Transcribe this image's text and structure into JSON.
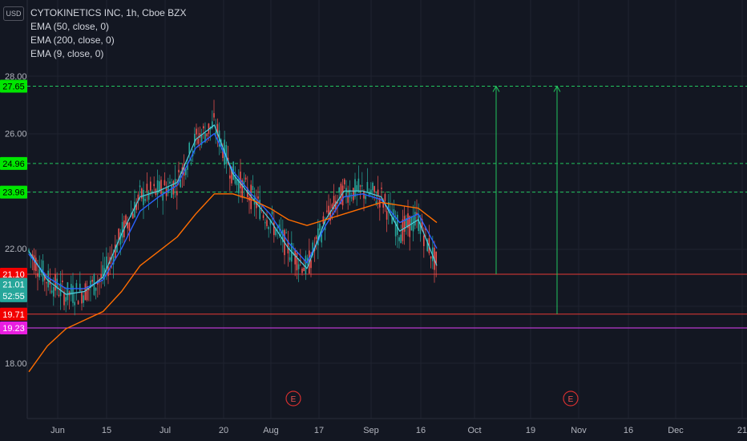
{
  "header": {
    "symbol_line": "CYTOKINETICS INC, 1h, Cboe BZX",
    "indicators": [
      "EMA (50, close, 0)",
      "EMA (200, close, 0)",
      "EMA (9, close, 0)"
    ],
    "currency_button": "USD"
  },
  "colors": {
    "background": "#131722",
    "grid": "#1f2330",
    "price_axis_text": "#b2b5be",
    "ema50": "#2962ff",
    "ema200": "#ff6d00",
    "ema9": "#4dd0e1",
    "green_level": "#22c55e",
    "red_level": "#e53935",
    "magenta_level": "#e040fb",
    "candle_up": "#26a69a",
    "candle_down": "#ef5350"
  },
  "chart_data": {
    "type": "line",
    "title": "CYTOKINETICS INC, 1h, Cboe BZX",
    "y_ticks": [
      "28.00",
      "26.00",
      "22.00",
      "18.00"
    ],
    "ylim": [
      17.0,
      29.5
    ],
    "x_ticks": [
      "Jun",
      "15",
      "Jul",
      "20",
      "Aug",
      "17",
      "Sep",
      "16",
      "Oct",
      "19",
      "Nov",
      "16",
      "Dec",
      "21"
    ],
    "price_badges": [
      {
        "label": "27.65",
        "value": 27.65,
        "color": "#00e600",
        "text_color": "#000000"
      },
      {
        "label": "24.96",
        "value": 24.96,
        "color": "#00e600",
        "text_color": "#000000"
      },
      {
        "label": "23.96",
        "value": 23.96,
        "color": "#00e600",
        "text_color": "#000000"
      },
      {
        "label": "21.10",
        "value": 21.1,
        "color": "#f20000",
        "text_color": "#ffffff"
      },
      {
        "label": "21.01",
        "value": 20.75,
        "color": "#26a69a",
        "text_color": "#ffffff"
      },
      {
        "label": "52:55",
        "value": 20.35,
        "color": "#26a69a",
        "text_color": "#ffffff"
      },
      {
        "label": "19.71",
        "value": 19.71,
        "color": "#f20000",
        "text_color": "#ffffff"
      },
      {
        "label": "19.23",
        "value": 19.23,
        "color": "#e91ee0",
        "text_color": "#ffffff"
      }
    ],
    "horizontal_levels": [
      {
        "value": 27.65,
        "style": "dashed",
        "color": "#22c55e"
      },
      {
        "value": 24.96,
        "style": "dashed",
        "color": "#22c55e"
      },
      {
        "value": 23.96,
        "style": "dashed",
        "color": "#22c55e"
      },
      {
        "value": 21.1,
        "style": "solid",
        "color": "#e53935"
      },
      {
        "value": 19.71,
        "style": "solid",
        "color": "#e53935"
      },
      {
        "value": 19.23,
        "style": "solid",
        "color": "#e040fb"
      }
    ],
    "arrows": [
      {
        "x_index": 24.4,
        "from": 21.1,
        "to": 27.65,
        "color": "#22c55e"
      },
      {
        "x_index": 27.8,
        "from": 19.71,
        "to": 27.65,
        "color": "#22c55e"
      }
    ],
    "earnings_markers": [
      {
        "x_index": 13.8,
        "label": "E"
      },
      {
        "x_index": 28.5,
        "label": "E"
      }
    ],
    "series": [
      {
        "name": "EMA (9, close, 0)",
        "x": [
          0,
          1,
          2,
          3,
          4,
          5,
          6,
          7,
          8,
          9,
          10,
          11,
          12,
          13,
          14,
          15,
          16,
          17,
          18,
          19,
          20,
          21,
          22
        ],
        "values": [
          21.9,
          20.9,
          20.4,
          20.5,
          21.0,
          22.5,
          23.8,
          24.0,
          24.3,
          25.8,
          26.3,
          24.6,
          23.8,
          23.0,
          22.0,
          21.3,
          23.0,
          24.0,
          24.0,
          23.8,
          22.6,
          23.0,
          21.4
        ]
      },
      {
        "name": "EMA (50, close, 0)",
        "x": [
          0,
          1,
          2,
          3,
          4,
          5,
          6,
          7,
          8,
          9,
          10,
          11,
          12,
          13,
          14,
          15,
          16,
          17,
          18,
          19,
          20,
          21,
          22
        ],
        "values": [
          21.8,
          21.0,
          20.6,
          20.6,
          20.9,
          22.0,
          23.3,
          23.8,
          24.2,
          25.5,
          26.0,
          24.7,
          23.9,
          23.2,
          22.2,
          21.5,
          22.8,
          23.8,
          23.9,
          23.7,
          22.9,
          23.2,
          22.0
        ]
      },
      {
        "name": "EMA (200, close, 0)",
        "x": [
          0,
          1,
          2,
          3,
          4,
          5,
          6,
          7,
          8,
          9,
          10,
          11,
          12,
          13,
          14,
          15,
          16,
          17,
          18,
          19,
          20,
          21,
          22
        ],
        "values": [
          17.7,
          18.6,
          19.2,
          19.5,
          19.8,
          20.5,
          21.4,
          21.9,
          22.4,
          23.2,
          23.9,
          23.9,
          23.7,
          23.4,
          23.0,
          22.8,
          23.0,
          23.2,
          23.4,
          23.6,
          23.5,
          23.4,
          22.9
        ]
      }
    ]
  }
}
